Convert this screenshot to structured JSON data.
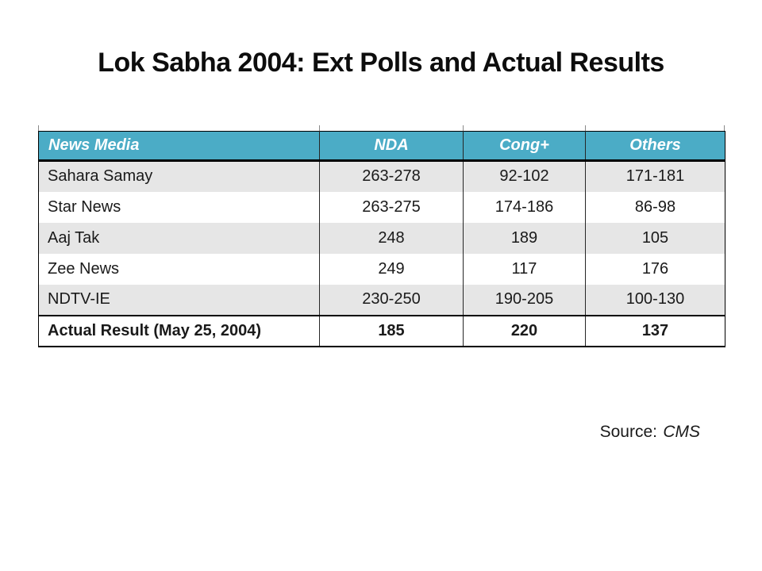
{
  "slide": {
    "title": "Lok Sabha 2004: Ext Polls and Actual Results"
  },
  "table": {
    "columns": [
      "News Media",
      "NDA",
      "Cong+",
      "Others"
    ],
    "rows": [
      [
        "Sahara Samay",
        "263-278",
        "92-102",
        "171-181"
      ],
      [
        "Star News",
        "263-275",
        "174-186",
        "86-98"
      ],
      [
        "Aaj Tak",
        "248",
        "189",
        "105"
      ],
      [
        "Zee News",
        "249",
        "117",
        "176"
      ],
      [
        "NDTV-IE",
        "230-250",
        "190-205",
        "100-130"
      ],
      [
        "Actual Result (May 25, 2004)",
        "185",
        "220",
        "137"
      ]
    ],
    "emphasis_row_index": 5
  },
  "source": {
    "label": "Source:",
    "value": "CMS"
  },
  "colors": {
    "header_bg": "#4BACC6",
    "header_text": "#FFFFFF",
    "row_alt_bg": "#E6E6E6",
    "border": "#000000",
    "text": "#1A1A1A"
  }
}
